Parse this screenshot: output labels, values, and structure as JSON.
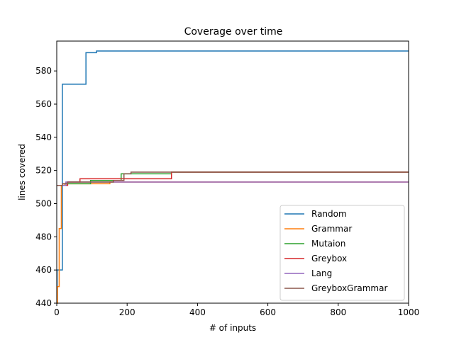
{
  "chart_data": {
    "type": "line",
    "title": "Coverage over time",
    "xlabel": "# of inputs",
    "ylabel": "lines covered",
    "xlim": [
      0,
      1000
    ],
    "ylim": [
      440,
      598
    ],
    "xticks": [
      0,
      200,
      400,
      600,
      800,
      1000
    ],
    "yticks": [
      440,
      460,
      480,
      500,
      520,
      540,
      560,
      580
    ],
    "grid": false,
    "legend_position": "lower-right",
    "step": true,
    "series": [
      {
        "name": "Random",
        "color": "#1f77b4",
        "points": [
          [
            0,
            440
          ],
          [
            1,
            460
          ],
          [
            15,
            460
          ],
          [
            16,
            572
          ],
          [
            82,
            572
          ],
          [
            83,
            591
          ],
          [
            112,
            591
          ],
          [
            113,
            592
          ],
          [
            1000,
            592
          ]
        ]
      },
      {
        "name": "Grammar",
        "color": "#ff7f0e",
        "points": [
          [
            0,
            440
          ],
          [
            2,
            450
          ],
          [
            6,
            450
          ],
          [
            7,
            485
          ],
          [
            12,
            485
          ],
          [
            13,
            511
          ],
          [
            20,
            511
          ],
          [
            21,
            512
          ],
          [
            150,
            512
          ],
          [
            151,
            513
          ],
          [
            1000,
            513
          ]
        ]
      },
      {
        "name": "Mutaion",
        "color": "#2ca02c",
        "points": [
          [
            0,
            511
          ],
          [
            20,
            511
          ],
          [
            30,
            512
          ],
          [
            95,
            512
          ],
          [
            96,
            514
          ],
          [
            182,
            514
          ],
          [
            183,
            518
          ],
          [
            325,
            518
          ],
          [
            326,
            519
          ],
          [
            1000,
            519
          ]
        ]
      },
      {
        "name": "Greybox",
        "color": "#d62728",
        "points": [
          [
            0,
            511
          ],
          [
            30,
            511
          ],
          [
            31,
            513
          ],
          [
            65,
            513
          ],
          [
            66,
            515
          ],
          [
            325,
            515
          ],
          [
            326,
            519
          ],
          [
            1000,
            519
          ]
        ]
      },
      {
        "name": "Lang",
        "color": "#9467bd",
        "points": [
          [
            0,
            511
          ],
          [
            25,
            511
          ],
          [
            26,
            513
          ],
          [
            1000,
            513
          ]
        ]
      },
      {
        "name": "GreyboxGrammar",
        "color": "#8c564b",
        "points": [
          [
            0,
            511
          ],
          [
            15,
            511
          ],
          [
            16,
            512
          ],
          [
            30,
            512
          ],
          [
            31,
            513
          ],
          [
            160,
            513
          ],
          [
            161,
            514
          ],
          [
            190,
            514
          ],
          [
            191,
            518
          ],
          [
            210,
            518
          ],
          [
            211,
            519
          ],
          [
            1000,
            519
          ]
        ]
      }
    ]
  }
}
